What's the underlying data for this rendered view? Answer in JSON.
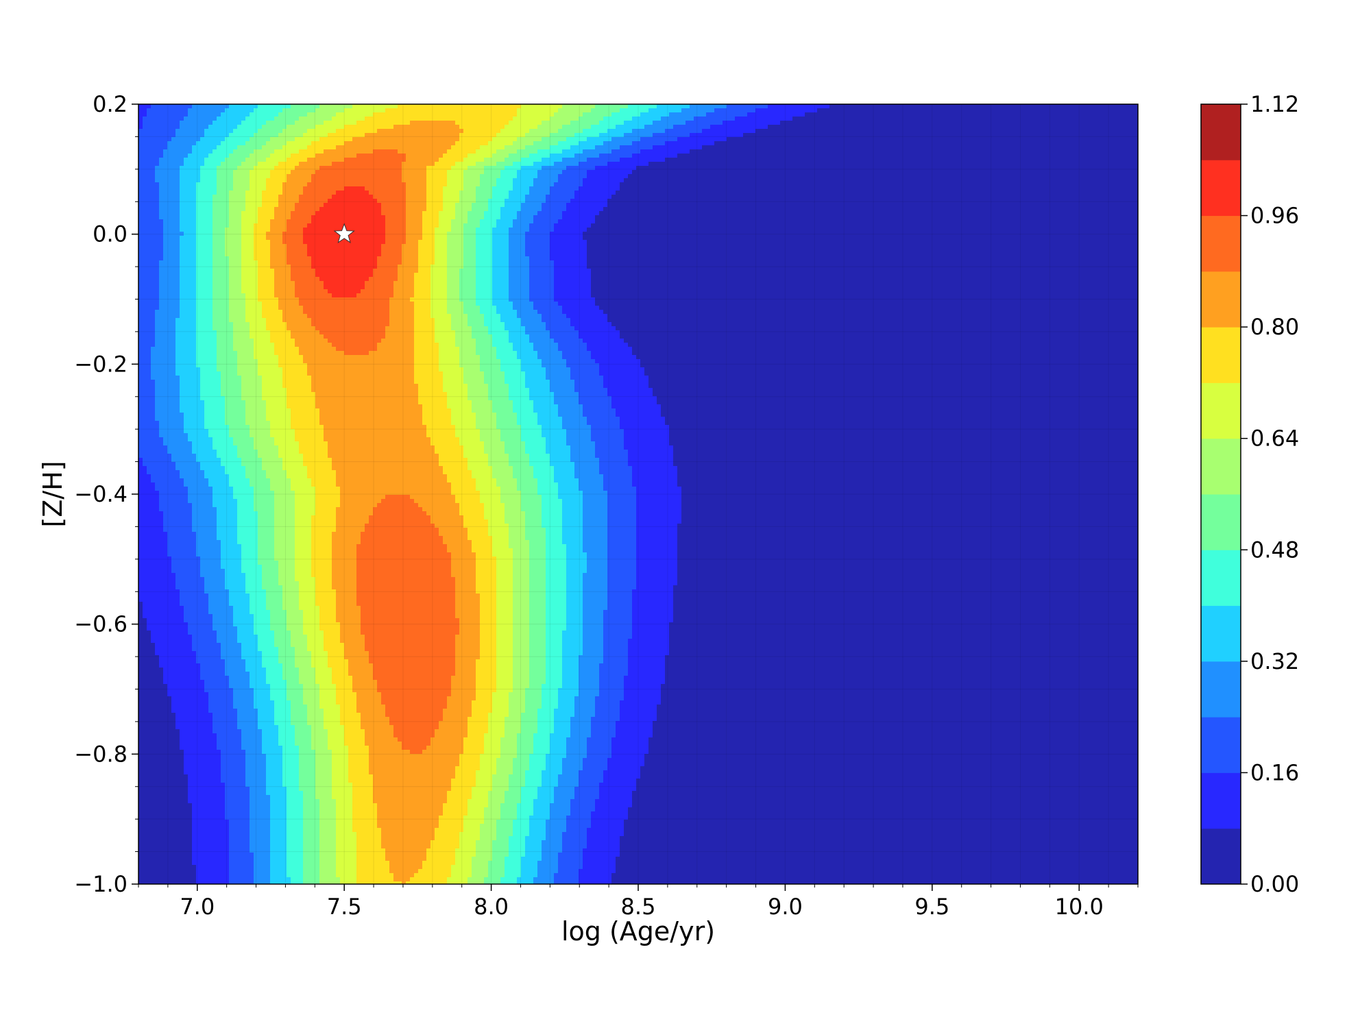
{
  "chart_data": {
    "type": "heatmap",
    "subtype": "filled-contour",
    "title": "",
    "xlabel": "log (Age/yr)",
    "ylabel": "[Z/H]",
    "xlim": [
      6.8,
      10.2
    ],
    "ylim": [
      -1.0,
      0.2
    ],
    "x_ticks": [
      "7.0",
      "7.5",
      "8.0",
      "8.5",
      "9.0",
      "9.5",
      "10.0"
    ],
    "y_ticks": [
      "−1.0",
      "−0.8",
      "−0.6",
      "−0.4",
      "−0.2",
      "0.0",
      "0.2"
    ],
    "grid": true,
    "colormap": "jet",
    "colorbar": {
      "range": [
        0.0,
        1.12
      ],
      "levels": [
        0.0,
        0.08,
        0.16,
        0.24,
        0.32,
        0.4,
        0.48,
        0.56,
        0.64,
        0.72,
        0.8,
        0.88,
        0.96,
        1.04,
        1.12
      ],
      "tick_labels": [
        "0.00",
        "0.16",
        "0.32",
        "0.48",
        "0.64",
        "0.80",
        "0.96",
        "1.12"
      ],
      "colors": [
        "#2424b0",
        "#2828ff",
        "#2456ff",
        "#2090ff",
        "#20d0ff",
        "#40ffdc",
        "#74ff9c",
        "#a8ff70",
        "#d8ff40",
        "#ffe020",
        "#ffa020",
        "#ff6a20",
        "#ff3020",
        "#b02020"
      ]
    },
    "marker": {
      "symbol": "star",
      "x": 7.5,
      "y": 0.0,
      "color": "#ffffff"
    },
    "contour_fields": {
      "center_at_metallicity": [
        {
          "z": 0.2,
          "center": 7.9,
          "width": 0.6,
          "peak": 0.76
        },
        {
          "z": 0.1,
          "center": 7.55,
          "width": 0.42,
          "peak": 0.93
        },
        {
          "z": 0.0,
          "center": 7.5,
          "width": 0.36,
          "peak": 1.04
        },
        {
          "z": -0.1,
          "center": 7.5,
          "width": 0.38,
          "peak": 0.96
        },
        {
          "z": -0.2,
          "center": 7.55,
          "width": 0.44,
          "peak": 0.87
        },
        {
          "z": -0.3,
          "center": 7.6,
          "width": 0.46,
          "peak": 0.86
        },
        {
          "z": -0.4,
          "center": 7.68,
          "width": 0.44,
          "peak": 0.88
        },
        {
          "z": -0.5,
          "center": 7.7,
          "width": 0.42,
          "peak": 0.95
        },
        {
          "z": -0.6,
          "center": 7.72,
          "width": 0.4,
          "peak": 0.96
        },
        {
          "z": -0.7,
          "center": 7.74,
          "width": 0.38,
          "peak": 0.93
        },
        {
          "z": -0.8,
          "center": 7.74,
          "width": 0.36,
          "peak": 0.88
        },
        {
          "z": -0.9,
          "center": 7.72,
          "width": 0.34,
          "peak": 0.84
        },
        {
          "z": -1.0,
          "center": 7.7,
          "width": 0.33,
          "peak": 0.8
        }
      ]
    }
  }
}
